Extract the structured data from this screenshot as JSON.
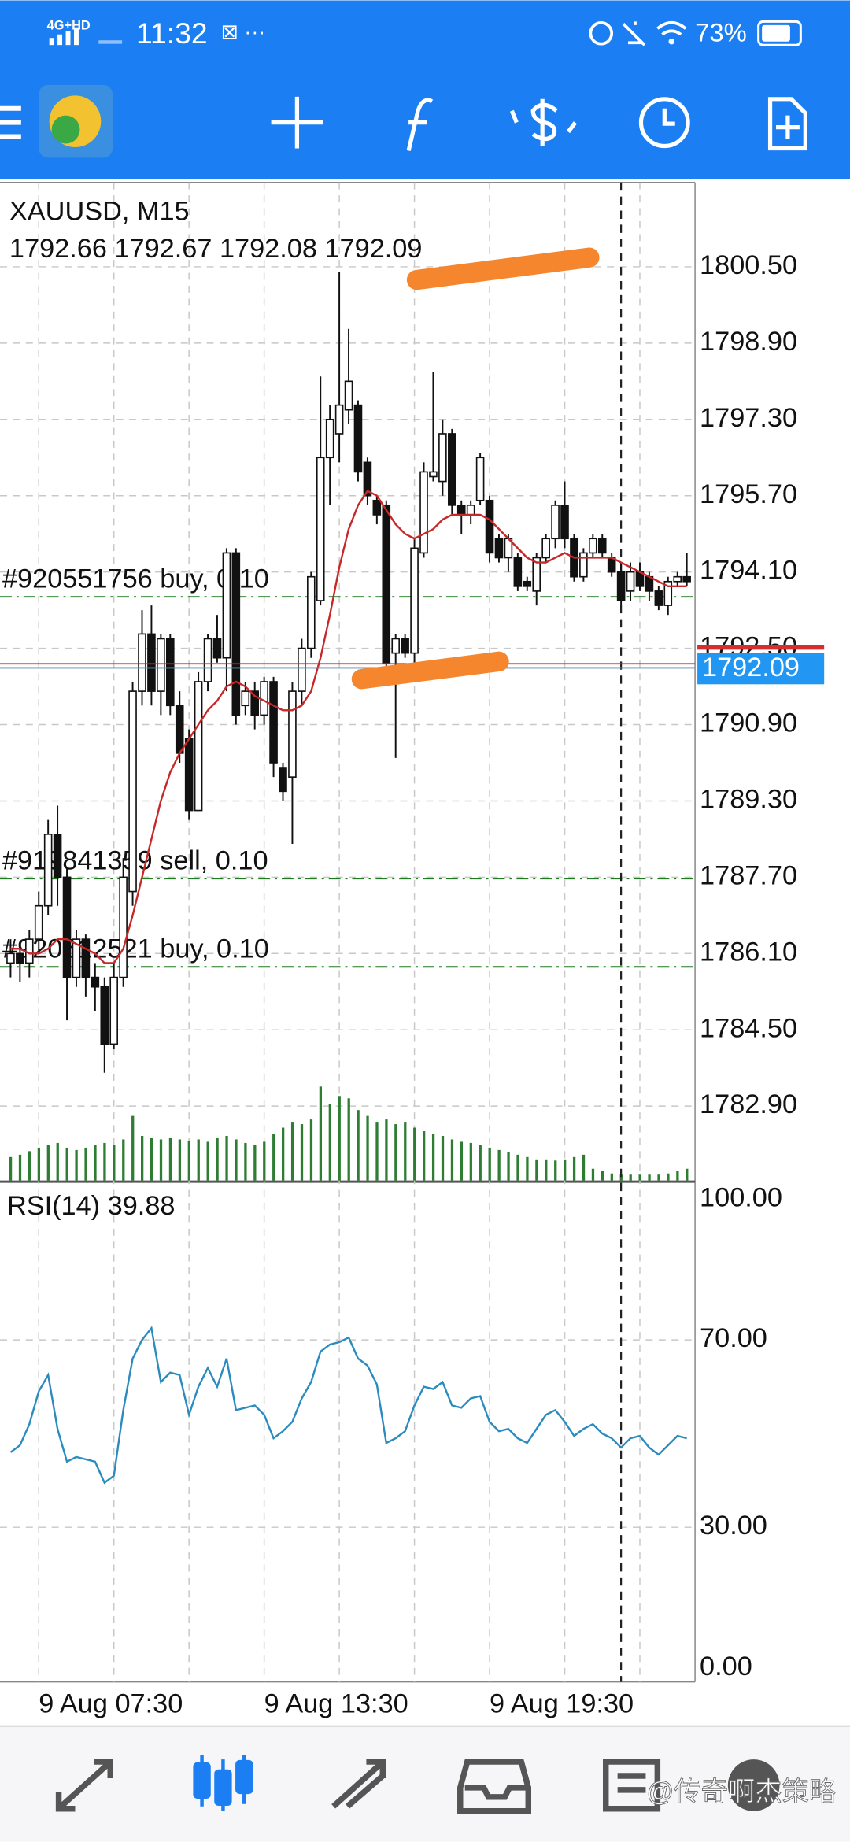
{
  "status_bar": {
    "network": "4G+HD",
    "time": "11:32",
    "battery": "73%"
  },
  "chart": {
    "type": "candlestick",
    "symbol": "XAUUSD, M15",
    "ohlc": [
      1792.66,
      1792.67,
      1792.08,
      1792.09
    ],
    "ylim": [
      1781.34,
      1802.27
    ],
    "yticks": [
      {
        "value": 1800.5,
        "label": "1800.50"
      },
      {
        "value": 1798.9,
        "label": "1798.90"
      },
      {
        "value": 1797.3,
        "label": "1797.30"
      },
      {
        "value": 1795.7,
        "label": "1795.70"
      },
      {
        "value": 1794.1,
        "label": "1794.10"
      },
      {
        "value": 1792.5,
        "label": "1792.50"
      },
      {
        "value": 1790.9,
        "label": "1790.90"
      },
      {
        "value": 1789.3,
        "label": "1789.30"
      },
      {
        "value": 1787.7,
        "label": "1787.70"
      },
      {
        "value": 1786.1,
        "label": "1786.10"
      },
      {
        "value": 1784.5,
        "label": "1784.50"
      },
      {
        "value": 1782.9,
        "label": "1782.90"
      }
    ],
    "grid": true,
    "bid": 1792.09,
    "ask": 1792.52,
    "candles": {
      "open": [
        1785.9,
        1786.1,
        1785.9,
        1786.4,
        1787.1,
        1788.6,
        1787.7,
        1785.6,
        1786.4,
        1785.6,
        1785.4,
        1784.2,
        1785.6,
        1787.4,
        1791.6,
        1792.8,
        1791.6,
        1792.7,
        1791.3,
        1790.6,
        1789.1,
        1791.8,
        1792.7,
        1792.3,
        1794.5,
        1791.3,
        1791.6,
        1791.1,
        1791.8,
        1790.0,
        1789.8,
        1791.6,
        1792.5,
        1793.5,
        1796.5,
        1797.0,
        1797.5,
        1797.6,
        1796.4,
        1795.6,
        1795.5,
        1792.4,
        1792.7,
        1792.4,
        1794.5,
        1796.1,
        1796.0,
        1797.0,
        1795.5,
        1795.3,
        1795.6,
        1795.6,
        1794.8,
        1794.4,
        1794.4,
        1793.9,
        1793.7,
        1794.4,
        1794.8,
        1795.5,
        1794.8,
        1794.0,
        1794.5,
        1794.8,
        1794.4,
        1794.1,
        1793.7,
        1794.1,
        1794.0,
        1793.7,
        1793.4,
        1793.9,
        1794.0
      ],
      "high": [
        1786.4,
        1786.3,
        1786.6,
        1787.4,
        1788.9,
        1789.2,
        1787.9,
        1786.6,
        1786.5,
        1785.9,
        1785.6,
        1785.9,
        1788.1,
        1791.8,
        1793.3,
        1793.4,
        1792.8,
        1792.8,
        1791.6,
        1790.8,
        1792.0,
        1792.8,
        1793.2,
        1794.6,
        1794.6,
        1791.8,
        1791.8,
        1791.9,
        1791.9,
        1790.1,
        1791.8,
        1792.7,
        1794.1,
        1798.2,
        1797.6,
        1800.4,
        1799.2,
        1797.7,
        1796.5,
        1795.7,
        1795.6,
        1792.8,
        1792.8,
        1794.8,
        1796.4,
        1798.3,
        1797.3,
        1797.1,
        1795.6,
        1795.6,
        1796.6,
        1795.7,
        1794.9,
        1794.9,
        1794.5,
        1794.0,
        1794.5,
        1794.9,
        1795.6,
        1796.0,
        1794.9,
        1794.6,
        1794.9,
        1794.9,
        1794.5,
        1794.3,
        1794.3,
        1794.3,
        1794.1,
        1793.8,
        1794.0,
        1794.1,
        1794.5
      ],
      "low": [
        1785.6,
        1785.5,
        1785.6,
        1786.1,
        1786.9,
        1787.1,
        1784.7,
        1785.4,
        1785.2,
        1784.9,
        1783.6,
        1784.1,
        1785.4,
        1787.1,
        1791.3,
        1791.3,
        1791.1,
        1791.1,
        1790.1,
        1788.9,
        1789.1,
        1791.6,
        1792.2,
        1791.6,
        1790.9,
        1791.1,
        1790.8,
        1790.9,
        1789.8,
        1789.3,
        1788.4,
        1791.3,
        1792.3,
        1793.4,
        1795.5,
        1796.4,
        1797.2,
        1796.0,
        1795.5,
        1795.1,
        1792.0,
        1790.2,
        1792.3,
        1792.2,
        1794.4,
        1796.0,
        1795.7,
        1795.3,
        1794.9,
        1795.1,
        1795.5,
        1794.3,
        1794.3,
        1794.1,
        1793.7,
        1793.7,
        1793.4,
        1794.3,
        1794.6,
        1794.6,
        1793.9,
        1793.9,
        1794.4,
        1794.4,
        1794.0,
        1793.4,
        1793.5,
        1793.7,
        1793.5,
        1793.3,
        1793.2,
        1793.8,
        1793.8
      ],
      "close": [
        1786.1,
        1785.9,
        1786.4,
        1787.1,
        1788.6,
        1787.7,
        1785.6,
        1786.4,
        1785.6,
        1785.4,
        1784.2,
        1785.6,
        1787.7,
        1791.6,
        1792.8,
        1791.6,
        1792.7,
        1791.3,
        1790.3,
        1789.1,
        1791.8,
        1792.7,
        1792.3,
        1794.5,
        1791.1,
        1791.6,
        1791.1,
        1791.8,
        1790.1,
        1789.5,
        1791.6,
        1792.5,
        1794.0,
        1796.5,
        1797.3,
        1797.6,
        1798.1,
        1796.2,
        1795.7,
        1795.3,
        1792.2,
        1792.7,
        1792.4,
        1794.6,
        1796.2,
        1796.2,
        1797.0,
        1795.5,
        1795.3,
        1795.5,
        1796.5,
        1794.5,
        1794.4,
        1794.8,
        1793.8,
        1793.8,
        1794.4,
        1794.8,
        1795.5,
        1794.8,
        1794.0,
        1794.5,
        1794.8,
        1794.5,
        1794.1,
        1793.5,
        1794.1,
        1793.8,
        1793.7,
        1793.4,
        1793.9,
        1794.0,
        1793.9
      ]
    },
    "ma": {
      "color": "#c62828",
      "values": [
        1786.2,
        1786.2,
        1786.1,
        1786.1,
        1786.2,
        1786.4,
        1786.4,
        1786.3,
        1786.2,
        1786.1,
        1785.9,
        1785.9,
        1786.2,
        1786.9,
        1787.7,
        1788.5,
        1789.3,
        1789.9,
        1790.3,
        1790.6,
        1790.9,
        1791.2,
        1791.4,
        1791.7,
        1791.8,
        1791.7,
        1791.5,
        1791.4,
        1791.3,
        1791.2,
        1791.2,
        1791.3,
        1791.6,
        1792.3,
        1793.2,
        1794.2,
        1795.0,
        1795.5,
        1795.8,
        1795.7,
        1795.4,
        1795.1,
        1794.9,
        1794.8,
        1794.9,
        1795.0,
        1795.2,
        1795.3,
        1795.3,
        1795.3,
        1795.3,
        1795.2,
        1795.0,
        1794.8,
        1794.6,
        1794.4,
        1794.3,
        1794.3,
        1794.4,
        1794.5,
        1794.4,
        1794.4,
        1794.4,
        1794.4,
        1794.4,
        1794.3,
        1794.2,
        1794.1,
        1794.0,
        1793.9,
        1793.8,
        1793.8,
        1793.8
      ]
    },
    "volume": {
      "color": "#2e7d32",
      "ylim": [
        0,
        850
      ],
      "values": [
        20,
        22,
        25,
        28,
        30,
        32,
        28,
        26,
        28,
        30,
        32,
        30,
        35,
        55,
        38,
        36,
        35,
        36,
        35,
        34,
        35,
        33,
        36,
        38,
        35,
        32,
        30,
        33,
        40,
        45,
        50,
        48,
        52,
        80,
        65,
        72,
        70,
        60,
        55,
        50,
        52,
        48,
        50,
        45,
        42,
        40,
        38,
        35,
        33,
        32,
        30,
        28,
        26,
        24,
        22,
        20,
        18,
        18,
        17,
        18,
        20,
        22,
        10,
        8,
        6,
        5,
        5,
        5,
        5,
        5,
        6,
        8,
        10
      ]
    },
    "orders": [
      {
        "label": "#920551756 buy, 0.10",
        "price": 1793.58
      },
      {
        "label": "#919841359 sell, 0.10",
        "price": 1787.67
      },
      {
        "label": "#920512521 buy, 0.10",
        "price": 1785.82
      }
    ],
    "xgrid": [
      3,
      11,
      19,
      27,
      35,
      43,
      51,
      59,
      67
    ],
    "xlabels": [
      {
        "index": 3,
        "label": "9 Aug 07:30"
      },
      {
        "index": 27,
        "label": "9 Aug 13:30"
      },
      {
        "index": 51,
        "label": "9 Aug 19:30"
      }
    ],
    "cursor_index": 65,
    "rsi": {
      "name": "RSI(14)",
      "current": 39.88,
      "color": "#2a8bbf",
      "ylim": [
        -3,
        103.5
      ],
      "yticks": [
        {
          "value": 100,
          "label": "100.00"
        },
        {
          "value": 70,
          "label": "70.00"
        },
        {
          "value": 30,
          "label": "30.00"
        },
        {
          "value": 0,
          "label": "0.00"
        }
      ],
      "values": [
        46,
        47.5,
        52,
        59,
        62.5,
        51,
        44,
        45,
        44.5,
        44,
        39.5,
        41,
        55,
        66,
        70,
        72.5,
        61,
        63,
        62.5,
        54,
        60,
        64,
        60,
        66,
        55,
        55.5,
        56,
        54,
        49,
        50.5,
        52.5,
        57.5,
        61,
        67.5,
        69,
        69.5,
        70.5,
        66,
        64.5,
        60.5,
        48,
        49,
        50.5,
        56,
        60,
        59.5,
        61,
        56,
        55.5,
        57.5,
        58,
        52.5,
        50.5,
        51,
        49,
        48,
        51,
        54,
        55,
        52.5,
        49.5,
        51,
        52,
        50,
        49,
        47,
        49,
        49.5,
        47,
        45.5,
        47.5,
        49.5,
        49
      ]
    }
  },
  "watermark": "@传奇啊杰策略"
}
